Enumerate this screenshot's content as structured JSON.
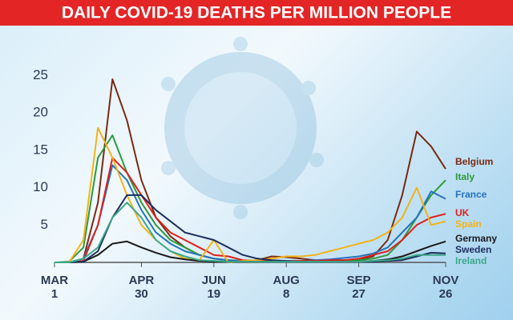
{
  "chart_data": {
    "type": "line",
    "title": "DAILY COVID-19 DEATHS PER MILLION PEOPLE",
    "x": [
      0,
      10,
      20,
      30,
      40,
      50,
      60,
      70,
      80,
      90,
      100,
      110,
      120,
      130,
      140,
      150,
      160,
      170,
      180,
      190,
      200,
      210,
      220,
      230,
      240,
      250,
      260,
      270
    ],
    "xlim": [
      0,
      270
    ],
    "xticks": [
      {
        "value": 0,
        "label": "MAR 1"
      },
      {
        "value": 60,
        "label": "APR 30"
      },
      {
        "value": 110,
        "label": "JUN 19"
      },
      {
        "value": 160,
        "label": "AUG 8"
      },
      {
        "value": 210,
        "label": "SEP 27"
      },
      {
        "value": 270,
        "label": "NOV 26"
      }
    ],
    "ylim": [
      0,
      26
    ],
    "yticks": [
      5,
      10,
      15,
      20,
      25
    ],
    "series": [
      {
        "name": "Belgium",
        "color": "#7a2a12",
        "values": [
          0,
          0,
          0.5,
          8,
          24.5,
          19,
          11,
          6,
          3.5,
          2,
          1,
          0.5,
          0.3,
          0.2,
          0.3,
          0.8,
          0.7,
          0.5,
          0.3,
          0.3,
          0.3,
          0.4,
          0.8,
          3,
          9,
          17.5,
          15.5,
          12.5
        ]
      },
      {
        "name": "Italy",
        "color": "#2e9a3c",
        "values": [
          0,
          0.1,
          2,
          14,
          17,
          12,
          8,
          5,
          3,
          2,
          1,
          0.5,
          0.3,
          0.2,
          0.1,
          0.1,
          0.1,
          0.1,
          0.1,
          0.2,
          0.3,
          0.3,
          0.5,
          1,
          3,
          6,
          9,
          11
        ]
      },
      {
        "name": "France",
        "color": "#2673b8",
        "values": [
          0,
          0,
          0.5,
          5,
          13,
          11,
          7,
          4,
          2.5,
          1.5,
          1,
          0.5,
          0.3,
          0.2,
          0.1,
          0.1,
          0.1,
          0.2,
          0.3,
          0.4,
          0.6,
          0.8,
          1.2,
          2,
          4,
          6,
          9.5,
          8.5
        ]
      },
      {
        "name": "UK",
        "color": "#e0201b",
        "values": [
          0,
          0,
          0.2,
          5,
          14,
          12,
          9,
          6,
          4,
          3,
          2,
          1,
          0.8,
          0.3,
          0.2,
          0.2,
          0.2,
          0.2,
          0.2,
          0.3,
          0.3,
          0.5,
          1,
          1.5,
          3,
          5,
          6,
          6.5
        ]
      },
      {
        "name": "Spain",
        "color": "#f2b31b",
        "values": [
          0,
          0,
          3,
          18,
          14,
          9,
          5,
          3,
          1.5,
          0.5,
          0.3,
          3,
          0,
          0.2,
          0.3,
          0.5,
          0.8,
          0.8,
          1,
          1.5,
          2,
          2.5,
          3,
          4,
          6,
          10,
          5,
          5.5
        ]
      },
      {
        "name": "Germany",
        "color": "#1a1a1a",
        "values": [
          0,
          0,
          0.1,
          1,
          2.5,
          2.8,
          2,
          1.3,
          0.7,
          0.4,
          0.2,
          0.1,
          0.1,
          0.1,
          0.1,
          0.1,
          0.1,
          0.1,
          0.1,
          0.1,
          0.1,
          0.1,
          0.2,
          0.4,
          0.8,
          1.5,
          2.2,
          2.8
        ]
      },
      {
        "name": "Sweden",
        "color": "#1d2e5c",
        "values": [
          0,
          0,
          0.1,
          1.5,
          6,
          9,
          9,
          7,
          5.5,
          4,
          3.5,
          3,
          2,
          1,
          0.5,
          0.3,
          0.2,
          0.1,
          0.1,
          0.1,
          0.1,
          0.1,
          0.1,
          0.2,
          0.3,
          0.8,
          1.3,
          1.2
        ]
      },
      {
        "name": "Ireland",
        "color": "#3aa88a",
        "values": [
          0,
          0,
          0.5,
          2,
          6,
          8,
          6,
          3,
          1.5,
          0.8,
          0.3,
          0.2,
          0.1,
          0.1,
          0.1,
          0.1,
          0.1,
          0.1,
          0.1,
          0.1,
          0.1,
          0.1,
          0.2,
          0.3,
          0.5,
          1,
          1,
          1
        ]
      }
    ]
  }
}
